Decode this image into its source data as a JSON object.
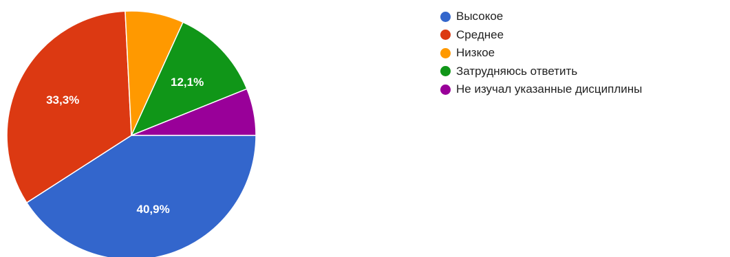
{
  "chart_data": {
    "type": "pie",
    "title": "",
    "legend_position": "right",
    "start_angle_deg": 0,
    "direction": "clockwise",
    "categories": [
      "Высокое",
      "Среднее",
      "Низкое",
      "Затрудняюсь ответить",
      "Не изучал указанные дисциплины"
    ],
    "values": [
      40.9,
      33.3,
      7.6,
      12.1,
      6.1
    ],
    "value_unit": "%",
    "data_labels": [
      "40,9%",
      "33,3%",
      "",
      "12,1%",
      ""
    ],
    "colors": [
      "#3366cc",
      "#dc3912",
      "#ff9900",
      "#109618",
      "#990099"
    ]
  }
}
